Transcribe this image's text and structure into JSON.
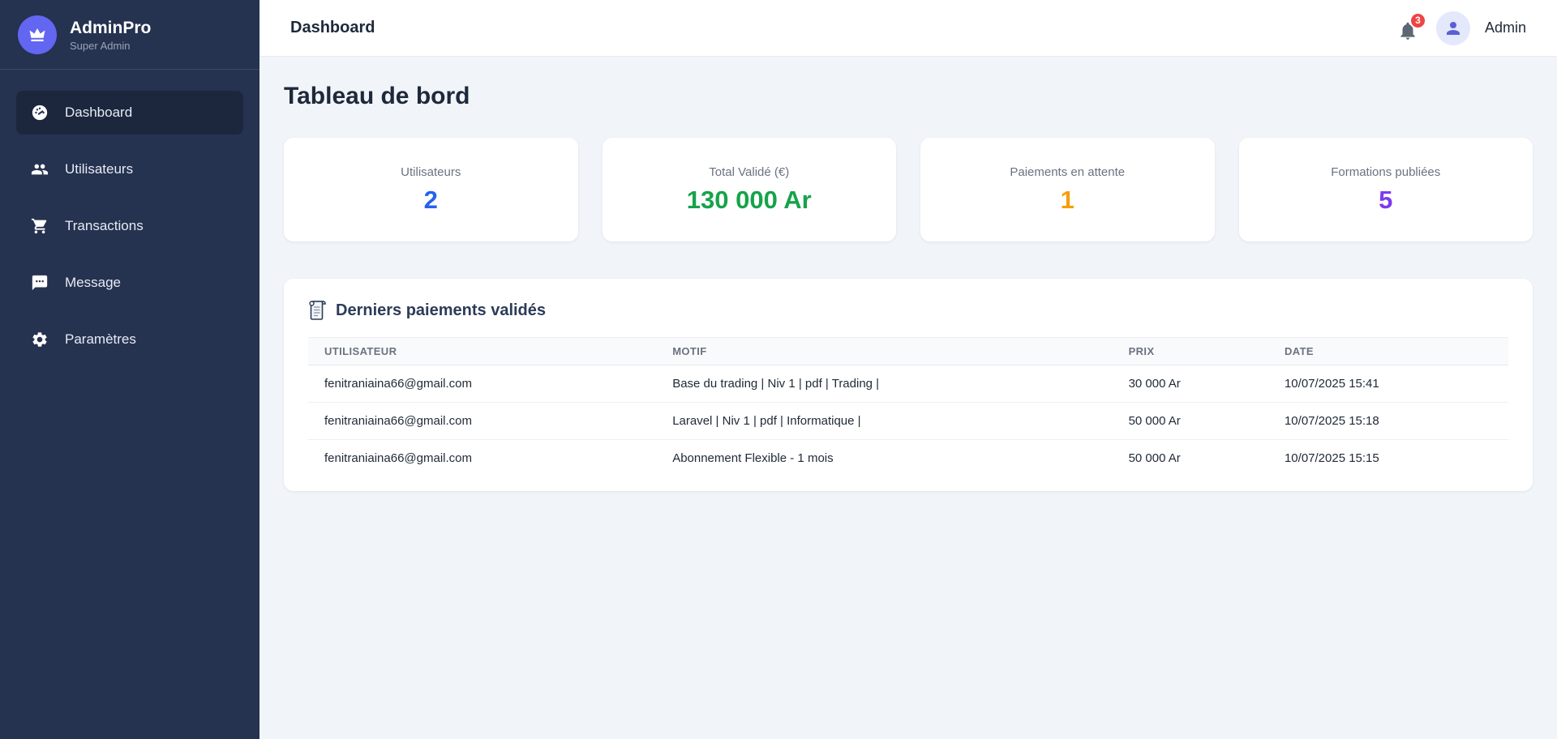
{
  "app": {
    "name": "AdminPro",
    "subtitle": "Super Admin"
  },
  "sidebar": {
    "items": [
      {
        "label": "Dashboard",
        "icon": "gauge-icon",
        "active": true
      },
      {
        "label": "Utilisateurs",
        "icon": "users-icon",
        "active": false
      },
      {
        "label": "Transactions",
        "icon": "cart-icon",
        "active": false
      },
      {
        "label": "Message",
        "icon": "comment-icon",
        "active": false
      },
      {
        "label": "Paramètres",
        "icon": "gear-icon",
        "active": false
      }
    ]
  },
  "header": {
    "title": "Dashboard",
    "notification_count": "3",
    "user_name": "Admin"
  },
  "main": {
    "page_title": "Tableau de bord",
    "stat_cards": [
      {
        "label": "Utilisateurs",
        "value": "2",
        "color": "#2563eb"
      },
      {
        "label": "Total Validé (€)",
        "value": "130 000 Ar",
        "color": "#16a34a"
      },
      {
        "label": "Paiements en attente",
        "value": "1",
        "color": "#f59e0b"
      },
      {
        "label": "Formations publiées",
        "value": "5",
        "color": "#7c3aed"
      }
    ],
    "payments_table": {
      "title": "Derniers paiements validés",
      "columns": [
        "Utilisateur",
        "Motif",
        "Prix",
        "Date"
      ],
      "rows": [
        {
          "user": "fenitraniaina66@gmail.com",
          "motif": "Base du trading | Niv 1 | pdf | Trading |",
          "prix": "30 000 Ar",
          "date": "10/07/2025 15:41"
        },
        {
          "user": "fenitraniaina66@gmail.com",
          "motif": "Laravel | Niv 1 | pdf | Informatique |",
          "prix": "50 000 Ar",
          "date": "10/07/2025 15:18"
        },
        {
          "user": "fenitraniaina66@gmail.com",
          "motif": "Abonnement Flexible - 1 mois",
          "prix": "50 000 Ar",
          "date": "10/07/2025 15:15"
        }
      ]
    }
  },
  "colors": {
    "sidebar_bg": "#253250",
    "accent": "#6366f1",
    "badge_red": "#ef4444",
    "page_bg": "#f1f5f9"
  }
}
